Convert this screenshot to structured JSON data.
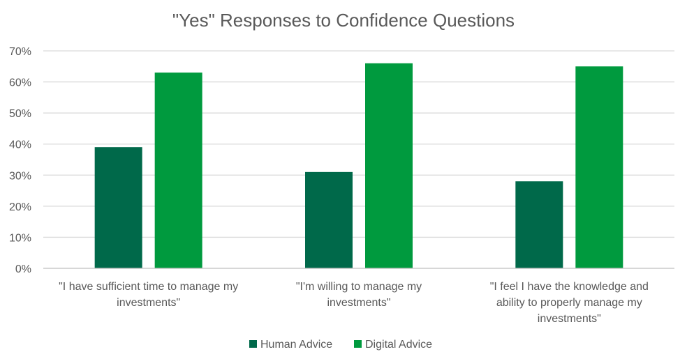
{
  "chart_data": {
    "type": "bar",
    "title": "\"Yes\" Responses to Confidence Questions",
    "categories": [
      [
        "\"I have sufficient time to manage my",
        "investments\""
      ],
      [
        "\"I'm willing to manage my",
        "investments\""
      ],
      [
        "\"I feel I have the knowledge and",
        "ability to properly manage my",
        "investments\""
      ]
    ],
    "series": [
      {
        "name": "Human Advice",
        "color": "#00694a",
        "values": [
          39,
          31,
          28
        ]
      },
      {
        "name": "Digital Advice",
        "color": "#009a3e",
        "values": [
          63,
          66,
          65
        ]
      }
    ],
    "ylim": [
      0,
      70
    ],
    "ytick_step": 10,
    "ytick_labels": [
      "0%",
      "10%",
      "20%",
      "30%",
      "40%",
      "50%",
      "60%",
      "70%"
    ],
    "grid": true,
    "legend_position": "bottom",
    "xlabel": "",
    "ylabel": ""
  }
}
